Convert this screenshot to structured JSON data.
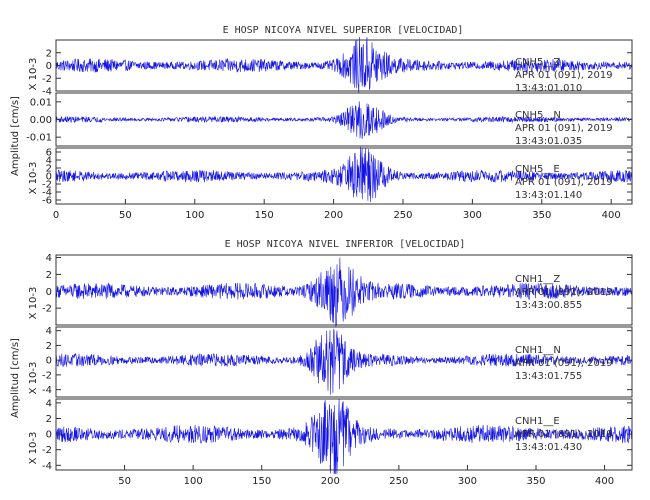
{
  "chart_data": [
    {
      "type": "line",
      "title": "E HOSP NICOYA NIVEL SUPERIOR [VELOCIDAD]",
      "ylabel": "Amplitud [cm/s]",
      "xlim": [
        0,
        415
      ],
      "xticks": [
        0,
        50,
        100,
        150,
        200,
        250,
        300,
        350,
        400
      ],
      "color": "#1414e6",
      "panels": [
        {
          "multiplier": "X 10-3",
          "ylim": [
            -4,
            4
          ],
          "yticks": [
            2,
            0,
            -2,
            -4
          ],
          "ytick_labels": [
            "2",
            "0",
            "-2",
            "-4"
          ],
          "background_amp": 1.1,
          "peak_amp": 3.8,
          "peak_time": 222,
          "peak_width": 14,
          "annotation": [
            "CNH5__Z",
            "APR 01 (091), 2019",
            "13:43:01.010"
          ]
        },
        {
          "multiplier": "",
          "ylim": [
            -0.015,
            0.015
          ],
          "yticks": [
            0.01,
            0.0,
            -0.01
          ],
          "ytick_labels": [
            "0.01",
            "0.00",
            "-0.01"
          ],
          "background_amp": 0.0017,
          "peak_amp": 0.011,
          "peak_time": 222,
          "peak_width": 13,
          "annotation": [
            "CNH5__N",
            "APR 01 (091), 2019",
            "13:43:01.035"
          ]
        },
        {
          "multiplier": "X 10-3",
          "ylim": [
            -7,
            7
          ],
          "yticks": [
            6,
            4,
            2,
            0,
            -2,
            -4,
            -6
          ],
          "ytick_labels": [
            "6",
            "4",
            "2",
            "0",
            "-2",
            "-4",
            "-6"
          ],
          "background_amp": 1.6,
          "peak_amp": 6.2,
          "peak_time": 222,
          "peak_width": 14,
          "annotation": [
            "CNH5__E",
            "APR 01 (091), 2019",
            "13:43:01.140"
          ]
        }
      ]
    },
    {
      "type": "line",
      "title": "E HOSP NICOYA NIVEL INFERIOR [VELOCIDAD]",
      "ylabel": "Amplitud [cm/s]",
      "xlim": [
        0,
        420
      ],
      "xticks": [
        50,
        100,
        150,
        200,
        250,
        300,
        350,
        400
      ],
      "color": "#1414e6",
      "panels": [
        {
          "multiplier": "X 10-3",
          "ylim": [
            -4,
            4.3
          ],
          "yticks": [
            4,
            2,
            0,
            -2
          ],
          "ytick_labels": [
            "4",
            "2",
            "0",
            "-2"
          ],
          "background_amp": 1.0,
          "peak_amp": 3.6,
          "peak_time": 205,
          "peak_width": 15,
          "annotation": [
            "CNH1__Z",
            "APR 01 (091), 2019",
            "13:43:00.855"
          ]
        },
        {
          "multiplier": "X 10-3",
          "ylim": [
            -5,
            4.5
          ],
          "yticks": [
            4,
            2,
            0,
            -2,
            -4
          ],
          "ytick_labels": [
            "4",
            "2",
            "0",
            "-2",
            "-4"
          ],
          "background_amp": 0.9,
          "peak_amp": 4.3,
          "peak_time": 200,
          "peak_width": 13,
          "annotation": [
            "CNH1__N",
            "APR 01 (091), 2019",
            "13:43:01.755"
          ]
        },
        {
          "multiplier": "X 10-3",
          "ylim": [
            -4.6,
            4.5
          ],
          "yticks": [
            4,
            2,
            0,
            -2,
            -4
          ],
          "ytick_labels": [
            "4",
            "2",
            "0",
            "-2",
            "-4"
          ],
          "background_amp": 1.2,
          "peak_amp": 4.2,
          "peak_time": 202,
          "peak_width": 14,
          "annotation": [
            "CNH1__E",
            "APR 01 (091), 2019",
            "13:43:01.430"
          ]
        }
      ]
    }
  ]
}
